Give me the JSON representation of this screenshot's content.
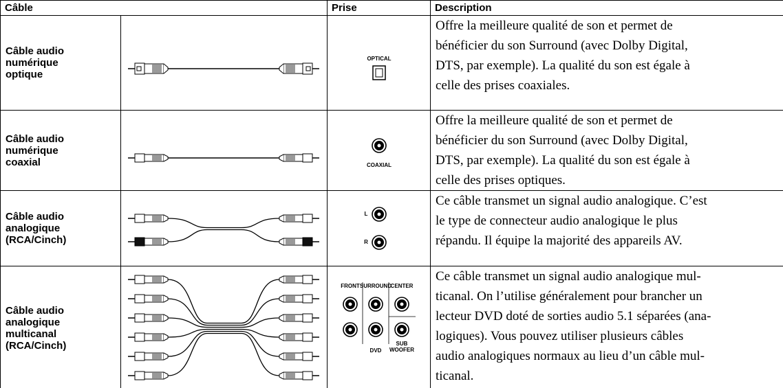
{
  "table": {
    "headers": [
      "Câble",
      "Prise",
      "Description"
    ],
    "rows": [
      {
        "cable": [
          "Câble audio",
          "numérique",
          "optique"
        ],
        "jack_labels": [
          "OPTICAL"
        ],
        "description": [
          "Offre la meilleure qualité de son et permet de",
          "bénéficier du son Surround (avec Dolby Digital,",
          "DTS, par exemple). La qualité du son est égale à",
          "celle des prises coaxiales."
        ]
      },
      {
        "cable": [
          "Câble audio",
          "numérique",
          "coaxial"
        ],
        "jack_labels": [
          "COAXIAL"
        ],
        "description": [
          "Offre la meilleure qualité de son et permet de",
          "bénéficier du son Surround (avec Dolby Digital,",
          "DTS, par exemple). La qualité du son est égale à",
          "celle des prises optiques."
        ]
      },
      {
        "cable": [
          "Câble audio",
          "analogique",
          "(RCA/Cinch)"
        ],
        "jack_labels": [
          "L",
          "R"
        ],
        "description": [
          "Ce câble transmet un signal audio analogique. C’est",
          "le type de connecteur audio analogique le plus",
          "répandu. Il équipe la majorité des appareils AV."
        ]
      },
      {
        "cable": [
          "Câble audio",
          "analogique",
          "multicanal",
          "(RCA/Cinch)"
        ],
        "jack_labels": [
          "FRONT",
          "SURROUND",
          "CENTER",
          "DVD",
          "SUB",
          "WOOFER"
        ],
        "description": [
          "Ce câble transmet un signal audio analogique mul-",
          "ticanal. On l’utilise généralement pour brancher un",
          "lecteur DVD doté de sorties audio 5.1 séparées (ana-",
          "logiques). Vous pouvez utiliser plusieurs câbles",
          "audio analogiques normaux au lieu d’un câble mul-",
          "ticanal."
        ]
      }
    ]
  }
}
